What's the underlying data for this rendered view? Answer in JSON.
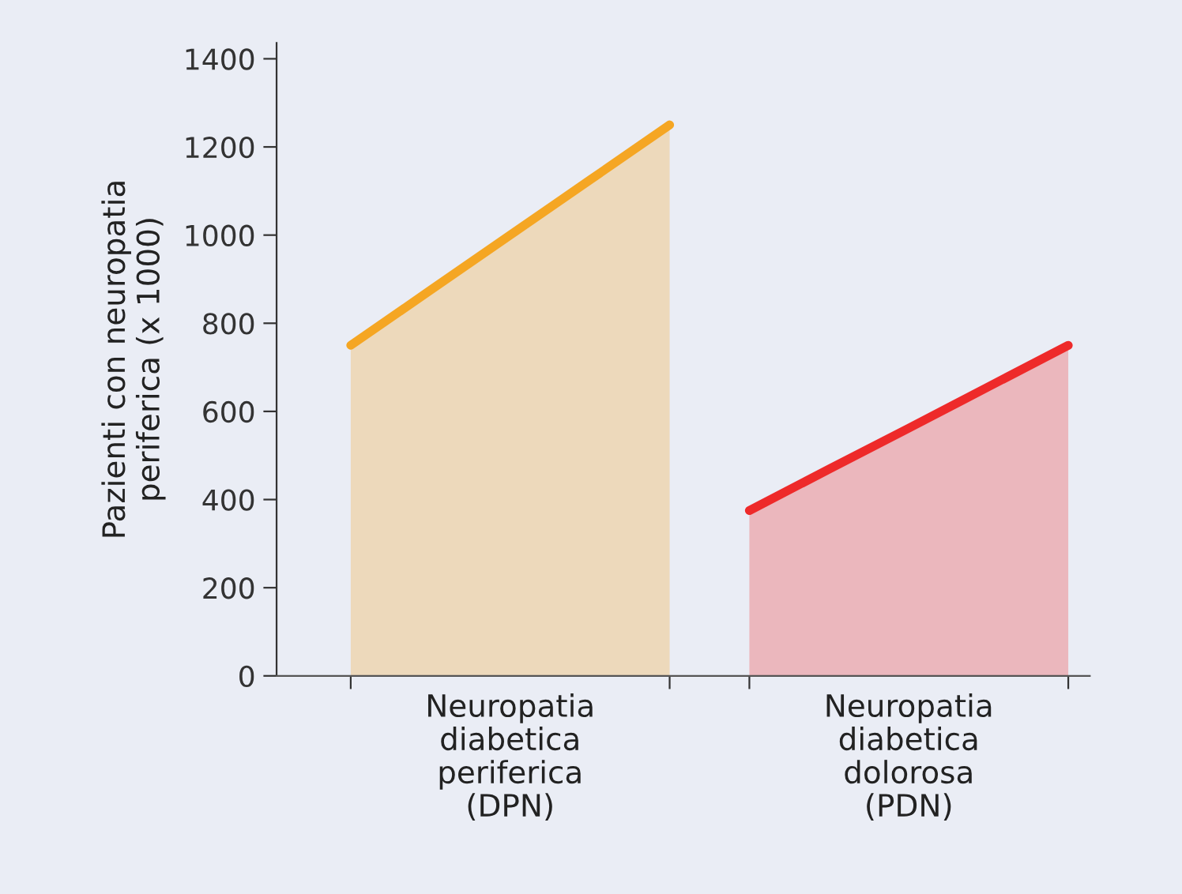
{
  "chart_data": {
    "type": "area",
    "ylabel": "Pazienti con neuropatia\nperiferica (x 1000)",
    "categories": [
      null,
      null,
      null,
      null,
      null,
      null,
      null,
      null,
      null,
      null
    ],
    "series": [
      {
        "color": "#f5a623",
        "values": [
          750,
          875,
          1000,
          1125,
          1250,
          null,
          null,
          null,
          null,
          null
        ]
      },
      {
        "color": "#ee2a2a",
        "values": [
          null,
          null,
          null,
          null,
          null,
          375,
          469,
          562,
          656,
          750
        ]
      }
    ],
    "ylim": [
      0,
      1436
    ],
    "yticks": [
      0,
      200,
      400,
      600,
      800,
      1000,
      1200,
      1400
    ],
    "grid": false,
    "legend": false,
    "tick_labels": "y",
    "annotations": [
      "Neuropatia\ndiabetica\nperiferica\n(DPN)",
      "Neuropatia\ndiabetica\ndolorosa\n(PDN)"
    ]
  }
}
